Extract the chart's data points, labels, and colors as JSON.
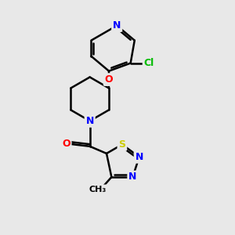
{
  "background_color": "#e8e8e8",
  "bond_color": "#000000",
  "bond_width": 1.8,
  "atom_colors": {
    "N": "#0000ff",
    "O": "#ff0000",
    "S": "#cccc00",
    "Cl": "#00bb00",
    "C": "#000000"
  },
  "font_size": 9,
  "figsize": [
    3.0,
    3.0
  ],
  "dpi": 100
}
